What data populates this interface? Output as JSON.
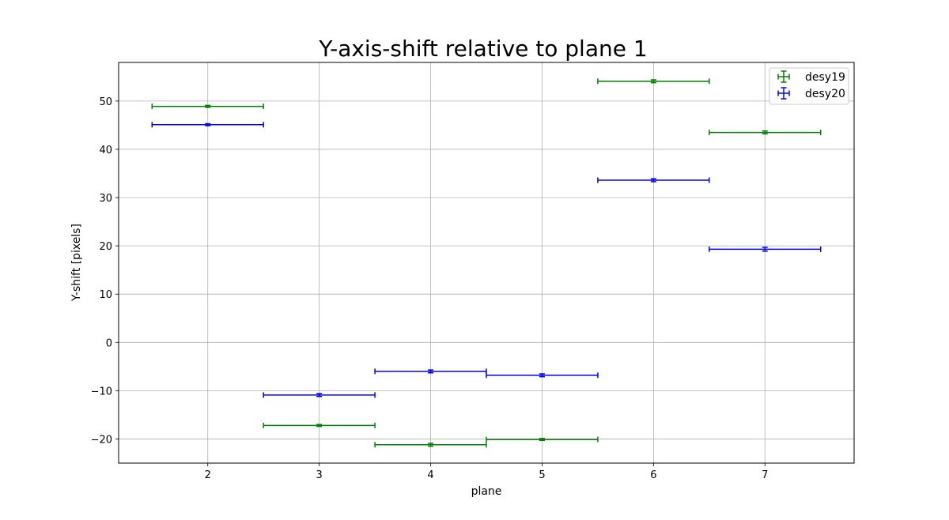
{
  "chart_data": {
    "type": "scatter",
    "title": "Y-axis-shift relative to plane 1",
    "xlabel": "plane",
    "ylabel": "Y-shift [pixels]",
    "xlim": [
      1.2,
      7.8
    ],
    "ylim": [
      -25,
      58
    ],
    "xticks": [
      2,
      3,
      4,
      5,
      6,
      7
    ],
    "yticks": [
      -20,
      -10,
      0,
      10,
      20,
      30,
      40,
      50
    ],
    "grid": true,
    "legend_position": "top-right",
    "x_error": 0.5,
    "series": [
      {
        "name": "desy19",
        "color": "#008000",
        "x": [
          2,
          3,
          4,
          5,
          6,
          7
        ],
        "y": [
          48.9,
          -17.2,
          -21.2,
          -20.1,
          54.1,
          43.5
        ],
        "yerr": [
          0.2,
          0.2,
          0.3,
          0.2,
          0.3,
          0.3
        ]
      },
      {
        "name": "desy20",
        "color": "#0000ff",
        "x": [
          2,
          3,
          4,
          5,
          6,
          7
        ],
        "y": [
          45.1,
          -10.9,
          -6.0,
          -6.8,
          33.6,
          19.3
        ],
        "yerr": [
          0.2,
          0.3,
          0.3,
          0.3,
          0.3,
          0.4
        ]
      }
    ]
  }
}
